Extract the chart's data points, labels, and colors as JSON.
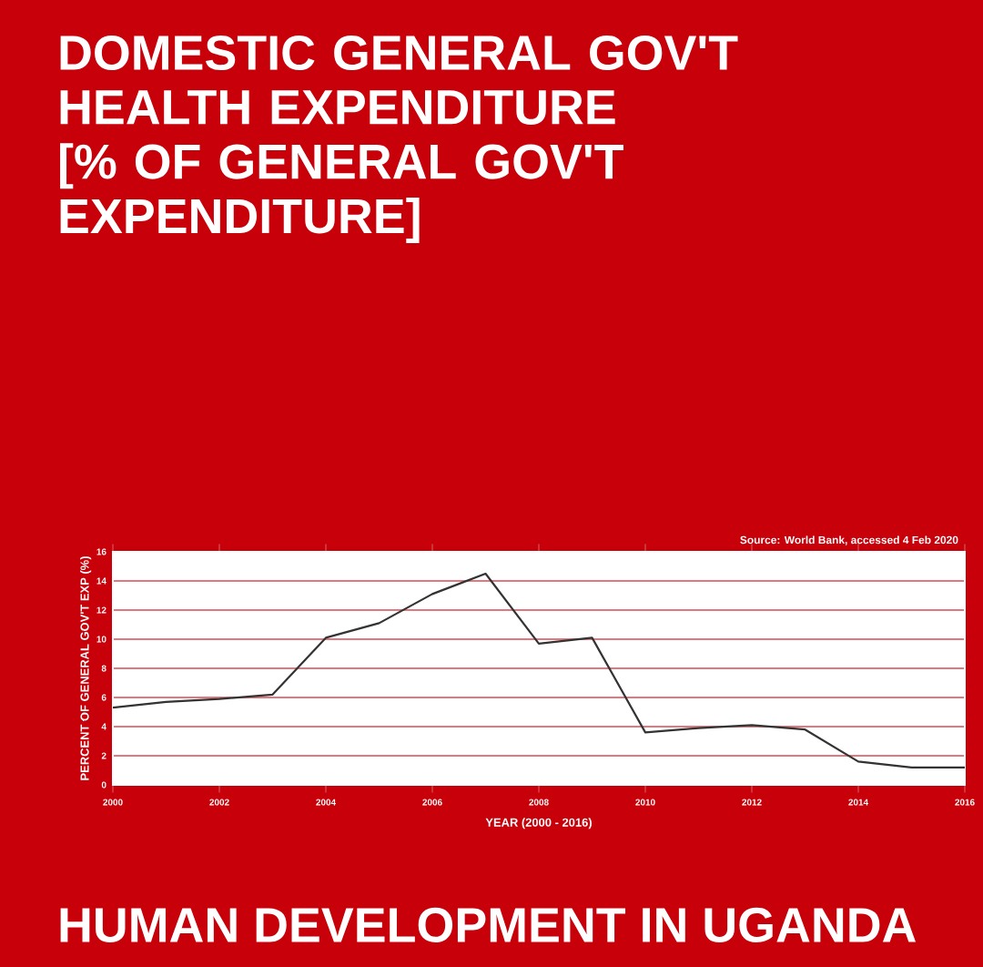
{
  "chart_data": {
    "type": "line",
    "title": "DOMESTIC GENERAL GOV'T HEALTH EXPENDITURE [% OF GENERAL GOV'T EXPENDITURE]",
    "annotations": [
      "Source: World Bank, accessed 4 Feb 2020",
      "HUMAN DEVELOPMENT IN UGANDA"
    ],
    "xlabel": "YEAR (2000 - 2016)",
    "ylabel": "PERCENT OF GENERAL GOV'T EXP (%)",
    "x": [
      2000,
      2001,
      2002,
      2003,
      2004,
      2005,
      2006,
      2007,
      2008,
      2009,
      2010,
      2011,
      2012,
      2013,
      2014,
      2015,
      2016
    ],
    "values": [
      5.3,
      5.7,
      5.9,
      6.2,
      10.1,
      11.1,
      13.1,
      14.5,
      9.7,
      10.1,
      3.6,
      3.9,
      4.1,
      3.8,
      1.6,
      1.2,
      1.2
    ],
    "color": "#333333",
    "xlim": [
      2000,
      2016
    ],
    "ylim": [
      0,
      16
    ],
    "xticks": [
      2000,
      2002,
      2004,
      2006,
      2008,
      2010,
      2012,
      2014,
      2016
    ],
    "yticks": [
      0,
      2,
      4,
      6,
      8,
      10,
      12,
      14,
      16
    ],
    "grid": "y",
    "marker": "none",
    "line_style": "solid"
  }
}
